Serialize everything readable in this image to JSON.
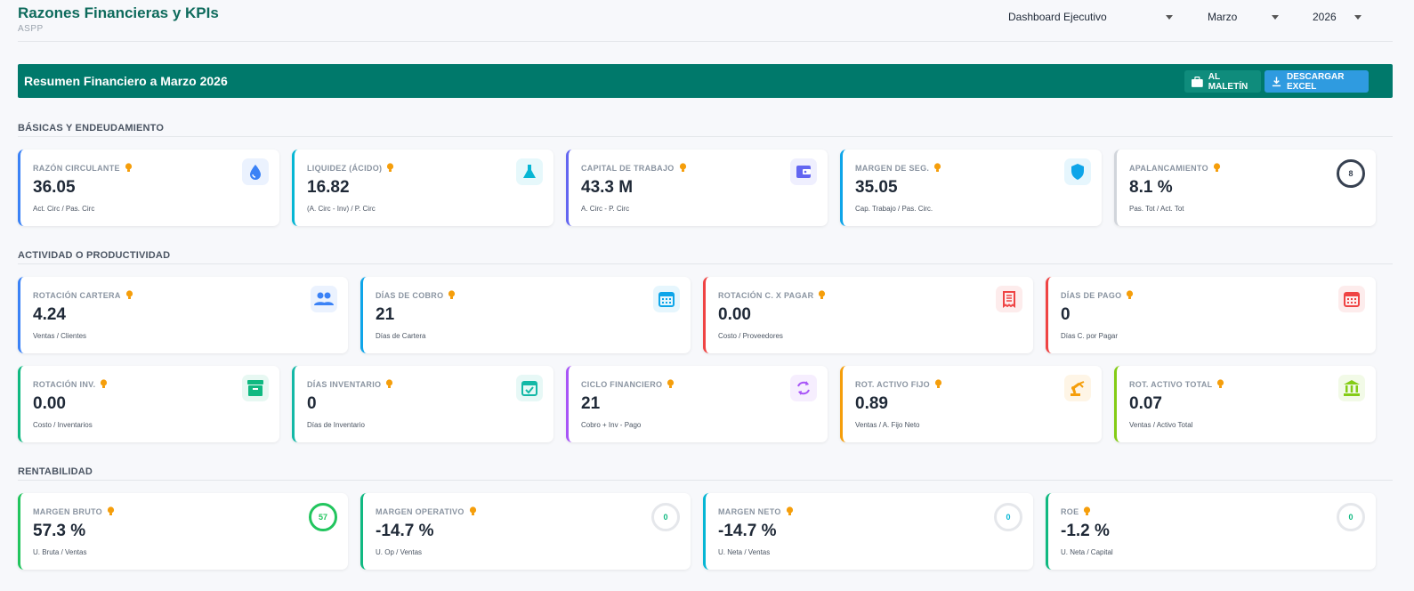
{
  "header": {
    "title": "Razones Financieras y KPIs",
    "subtitle": "ASPP",
    "selects": {
      "dashboard": "Dashboard Ejecutivo",
      "month": "Marzo",
      "year": "2026"
    }
  },
  "banner": {
    "title": "Resumen Financiero a Marzo 2026",
    "maletin_label": "AL MALETÍN",
    "excel_label": "DESCARGAR EXCEL"
  },
  "sections": {
    "basicas": "BÁSICAS Y ENDEUDAMIENTO",
    "actividad": "ACTIVIDAD O PRODUCTIVIDAD",
    "rentabilidad": "RENTABILIDAD"
  },
  "basicas": [
    {
      "label": "RAZÓN CIRCULANTE",
      "value": "36.05",
      "formula": "Act. Circ / Pas. Circ",
      "icon": "drop-icon",
      "color": "#3b82f6"
    },
    {
      "label": "LIQUIDEZ (ÁCIDO)",
      "value": "16.82",
      "formula": "(A. Circ - Inv) / P. Circ",
      "icon": "flask-icon",
      "color": "#06b6d4"
    },
    {
      "label": "CAPITAL DE TRABAJO",
      "value": "43.3 M",
      "formula": "A. Circ - P. Circ",
      "icon": "wallet-icon",
      "color": "#6366f1"
    },
    {
      "label": "MARGEN DE SEG.",
      "value": "35.05",
      "formula": "Cap. Trabajo / Pas. Circ.",
      "icon": "shield-icon",
      "color": "#0ea5e9"
    },
    {
      "label": "APALANCAMIENTO",
      "value": "8.1 %",
      "formula": "Pas. Tot / Act. Tot",
      "ring": "8",
      "color": "#d1d5db"
    }
  ],
  "actividad_row1": [
    {
      "label": "ROTACIÓN CARTERA",
      "value": "4.24",
      "formula": "Ventas / Clientes",
      "icon": "people-icon",
      "color": "#3b82f6"
    },
    {
      "label": "DÍAS DE COBRO",
      "value": "21",
      "formula": "Días de Cartera",
      "icon": "calendar-icon",
      "color": "#0ea5e9"
    },
    {
      "label": "ROTACIÓN C. X PAGAR",
      "value": "0.00",
      "formula": "Costo / Proveedores",
      "icon": "receipt-icon",
      "color": "#ef4444"
    },
    {
      "label": "DÍAS DE PAGO",
      "value": "0",
      "formula": "Días C. por Pagar",
      "icon": "calendar-icon",
      "color": "#ef4444"
    }
  ],
  "actividad_row2": [
    {
      "label": "ROTACIÓN INV.",
      "value": "0.00",
      "formula": "Costo / Inventarios",
      "icon": "archive-icon",
      "color": "#10b981"
    },
    {
      "label": "DÍAS INVENTARIO",
      "value": "0",
      "formula": "Días de Inventario",
      "icon": "calendar-check-icon",
      "color": "#14b8a6"
    },
    {
      "label": "CICLO FINANCIERO",
      "value": "21",
      "formula": "Cobro + Inv - Pago",
      "icon": "sync-icon",
      "color": "#a855f7"
    },
    {
      "label": "ROT. ACTIVO FIJO",
      "value": "0.89",
      "formula": "Ventas / A. Fijo Neto",
      "icon": "robot-arm-icon",
      "color": "#f59e0b"
    },
    {
      "label": "ROT. ACTIVO TOTAL",
      "value": "0.07",
      "formula": "Ventas / Activo Total",
      "icon": "bank-icon",
      "color": "#84cc16"
    }
  ],
  "rentabilidad": [
    {
      "label": "MARGEN BRUTO",
      "value": "57.3 %",
      "formula": "U. Bruta / Ventas",
      "ring": "57",
      "color": "#22c55e"
    },
    {
      "label": "MARGEN OPERATIVO",
      "value": "-14.7 %",
      "formula": "U. Op / Ventas",
      "ring": "0",
      "color": "#10b981"
    },
    {
      "label": "MARGEN NETO",
      "value": "-14.7 %",
      "formula": "U. Neta / Ventas",
      "ring": "0",
      "color": "#06b6d4"
    },
    {
      "label": "ROE",
      "value": "-1.2 %",
      "formula": "U. Neta / Capital",
      "ring": "0",
      "color": "#10b981"
    }
  ]
}
